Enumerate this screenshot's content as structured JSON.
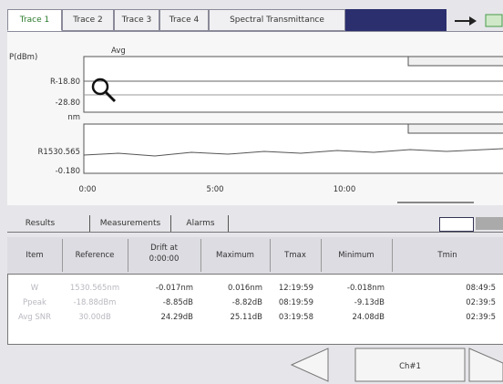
{
  "tabs": [
    "Trace 1",
    "Trace 2",
    "Trace 3",
    "Trace 4",
    "Spectral Transmittance"
  ],
  "chart": {
    "upper_axis_label": "P(dBm)",
    "upper_legend": "Avg",
    "upper_labels": [
      "R-18.80",
      "-28.80"
    ],
    "lower_axis_label": "nm",
    "lower_labels": [
      "R1530.565",
      "-0.180"
    ],
    "x_ticks": [
      "0:00",
      "5:00",
      "10:00"
    ]
  },
  "subtabs": [
    "Results",
    "Measurements",
    "Alarms"
  ],
  "table": {
    "headers": [
      "Item",
      "Reference",
      "Drift at\n0:00:00",
      "Maximum",
      "Tmax",
      "Minimum",
      "Tmin"
    ],
    "rows": [
      [
        "W",
        "1530.565nm",
        "-0.017nm",
        "0.016nm",
        "12:19:59",
        "-0.018nm",
        "08:49:5"
      ],
      [
        "Ppeak",
        "-18.88dBm",
        "-8.85dB",
        "-8.82dB",
        "08:19:59",
        "-9.13dB",
        "02:39:5"
      ],
      [
        "Avg SNR",
        "30.00dB",
        "24.29dB",
        "25.11dB",
        "03:19:58",
        "24.08dB",
        "02:39:5"
      ]
    ]
  },
  "button": "Ch#1"
}
